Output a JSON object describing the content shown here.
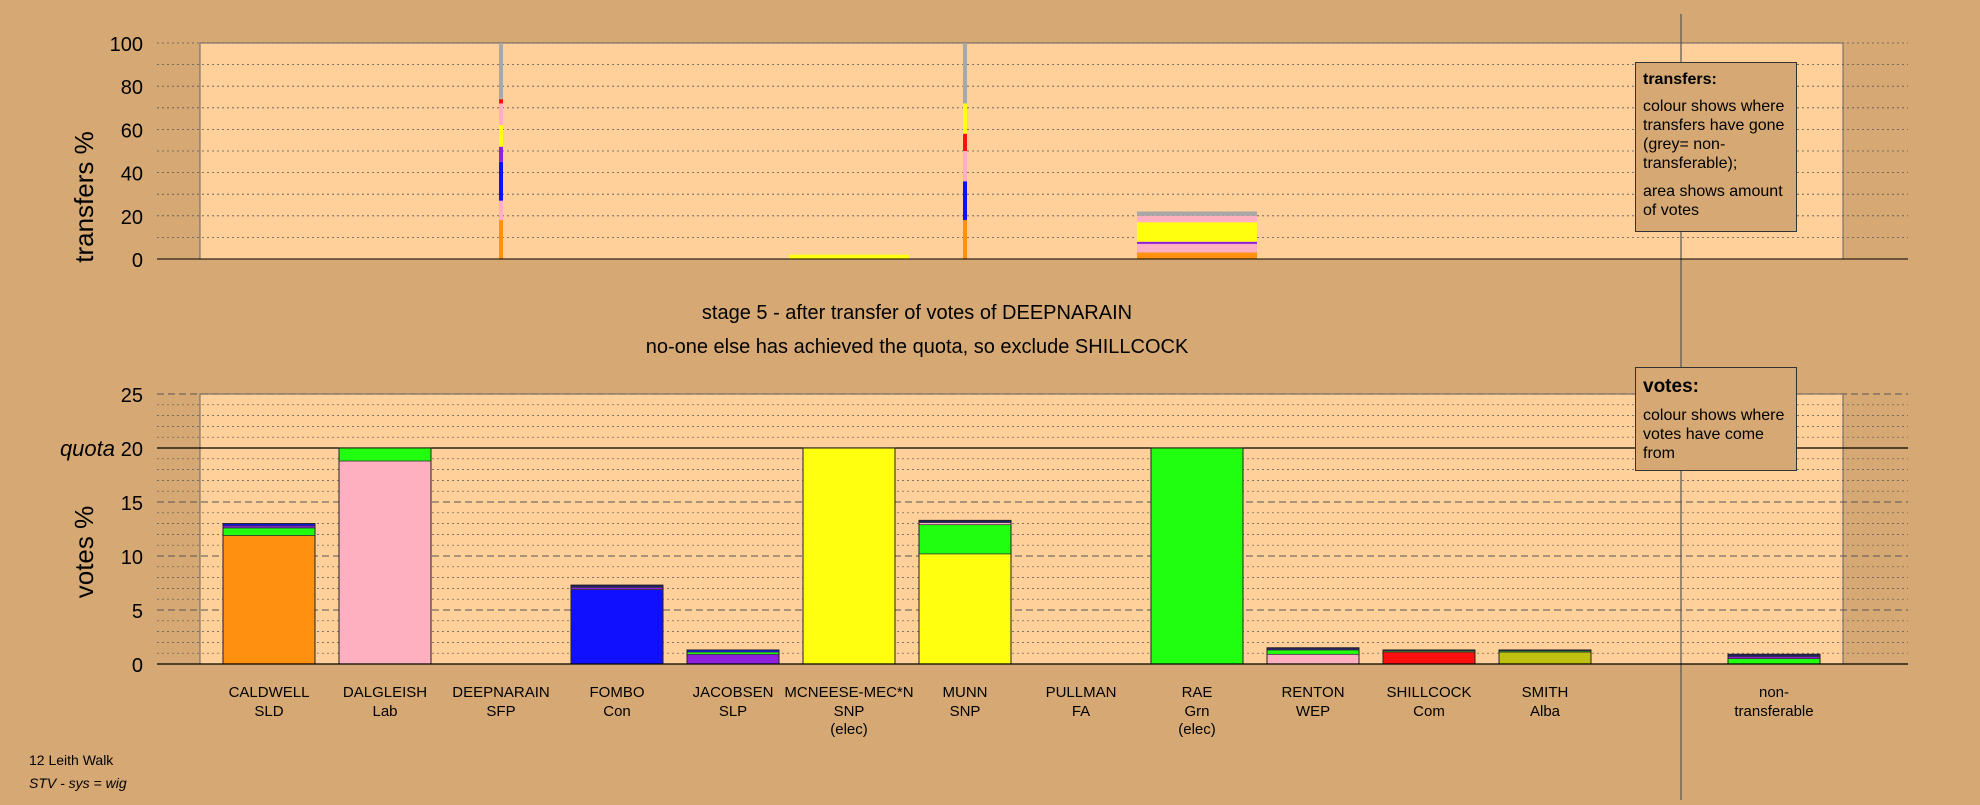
{
  "chart_data": [
    {
      "type": "bar",
      "name": "transfers",
      "ylabel": "transfers %",
      "ylim": [
        0,
        100
      ],
      "yticks": [
        0,
        20,
        40,
        60,
        80,
        100
      ],
      "grid": "dotted every 10",
      "thin_bars": [
        {
          "candidate": "DEEPNARAIN",
          "segments": [
            {
              "color": "#ff9010",
              "from": 0,
              "to": 18
            },
            {
              "color": "#ffb0c0",
              "from": 18,
              "to": 27
            },
            {
              "color": "#1010ff",
              "from": 27,
              "to": 45
            },
            {
              "color": "#9020e0",
              "from": 45,
              "to": 52
            },
            {
              "color": "#ffff10",
              "from": 52,
              "to": 62
            },
            {
              "color": "#ffb0c0",
              "from": 62,
              "to": 72
            },
            {
              "color": "#ff1010",
              "from": 72,
              "to": 74
            },
            {
              "color": "#a8a8a8",
              "from": 74,
              "to": 100
            }
          ]
        },
        {
          "candidate": "MUNN",
          "segments": [
            {
              "color": "#ff9010",
              "from": 0,
              "to": 18
            },
            {
              "color": "#1010ff",
              "from": 18,
              "to": 36
            },
            {
              "color": "#ffb0c0",
              "from": 36,
              "to": 50
            },
            {
              "color": "#ff1010",
              "from": 50,
              "to": 58
            },
            {
              "color": "#ffff10",
              "from": 58,
              "to": 72
            },
            {
              "color": "#a8a8a8",
              "from": 72,
              "to": 100
            }
          ]
        }
      ],
      "wide_bars": [
        {
          "candidate": "MCNEESE-MEC*N",
          "segments": [
            {
              "color": "#ffff10",
              "from": 0,
              "to": 2
            }
          ]
        },
        {
          "candidate": "RAE",
          "segments": [
            {
              "color": "#ff9010",
              "from": 0,
              "to": 3
            },
            {
              "color": "#ffb0c0",
              "from": 3,
              "to": 7
            },
            {
              "color": "#9020e0",
              "from": 7,
              "to": 8
            },
            {
              "color": "#ffff10",
              "from": 8,
              "to": 17
            },
            {
              "color": "#ffb0c0",
              "from": 17,
              "to": 20
            },
            {
              "color": "#a8a8a8",
              "from": 20,
              "to": 22
            }
          ]
        }
      ]
    },
    {
      "type": "bar",
      "name": "votes",
      "stacked": true,
      "ylabel": "votes %",
      "ylim": [
        0,
        25
      ],
      "yticks": [
        0,
        5,
        10,
        15,
        20,
        25
      ],
      "quota": 20,
      "quota_label": "quota",
      "grid": "dotted every 1, dashed every 5",
      "categories": [
        {
          "name": "CALDWELL",
          "party": "SLD",
          "note": ""
        },
        {
          "name": "DALGLEISH",
          "party": "Lab",
          "note": ""
        },
        {
          "name": "DEEPNARAIN",
          "party": "SFP",
          "note": ""
        },
        {
          "name": "FOMBO",
          "party": "Con",
          "note": ""
        },
        {
          "name": "JACOBSEN",
          "party": "SLP",
          "note": ""
        },
        {
          "name": "MCNEESE-MEC*N",
          "party": "SNP",
          "note": "(elec)"
        },
        {
          "name": "MUNN",
          "party": "SNP",
          "note": ""
        },
        {
          "name": "PULLMAN",
          "party": "FA",
          "note": ""
        },
        {
          "name": "RAE",
          "party": "Grn",
          "note": "(elec)"
        },
        {
          "name": "RENTON",
          "party": "WEP",
          "note": ""
        },
        {
          "name": "SHILLCOCK",
          "party": "Com",
          "note": ""
        },
        {
          "name": "SMITH",
          "party": "Alba",
          "note": ""
        }
      ],
      "stacks": [
        [
          {
            "color": "#ff9010",
            "value": 11.9
          },
          {
            "color": "#20ff10",
            "value": 0.7
          },
          {
            "color": "#9020e0",
            "value": 0.2
          },
          {
            "color": "#1010ff",
            "value": 0.2
          }
        ],
        [
          {
            "color": "#ffb0c0",
            "value": 18.8
          },
          {
            "color": "#20ff10",
            "value": 1.2
          }
        ],
        [],
        [
          {
            "color": "#1010ff",
            "value": 6.9
          },
          {
            "color": "#9020e0",
            "value": 0.2
          },
          {
            "color": "#202070",
            "value": 0.2
          }
        ],
        [
          {
            "color": "#9020e0",
            "value": 0.9
          },
          {
            "color": "#20ff10",
            "value": 0.2
          },
          {
            "color": "#1010ff",
            "value": 0.2
          }
        ],
        [
          {
            "color": "#ffff10",
            "value": 20.0
          }
        ],
        [
          {
            "color": "#ffff10",
            "value": 10.2
          },
          {
            "color": "#20ff10",
            "value": 2.7
          },
          {
            "color": "#ffb0c0",
            "value": 0.2
          },
          {
            "color": "#202070",
            "value": 0.2
          }
        ],
        [],
        [
          {
            "color": "#20ff10",
            "value": 20.0
          }
        ],
        [
          {
            "color": "#ffb0c0",
            "value": 0.9
          },
          {
            "color": "#20ff10",
            "value": 0.4
          },
          {
            "color": "#202070",
            "value": 0.2
          }
        ],
        [
          {
            "color": "#ff1010",
            "value": 1.1
          },
          {
            "color": "#20ff10",
            "value": 0.1
          },
          {
            "color": "#202070",
            "value": 0.1
          }
        ],
        [
          {
            "color": "#c0c010",
            "value": 1.1
          },
          {
            "color": "#20ff10",
            "value": 0.1
          },
          {
            "color": "#202070",
            "value": 0.1
          }
        ]
      ],
      "nontransferable": {
        "label": "non-\ntransferable",
        "stack": [
          {
            "color": "#20ff10",
            "value": 0.5
          },
          {
            "color": "#9020e0",
            "value": 0.2
          },
          {
            "color": "#202070",
            "value": 0.2
          }
        ]
      }
    }
  ],
  "stage_title": "stage 5 - after transfer of votes of DEEPNARAIN",
  "stage_subtitle": "no-one else has achieved the quota, so exclude SHILLCOCK",
  "legend_transfers": {
    "title": "transfers:",
    "line1": "colour shows where transfers have gone (grey= non-transferable);",
    "line2": "area shows amount of votes"
  },
  "legend_votes": {
    "title": "votes:",
    "line1": "colour shows where votes have come from"
  },
  "footer": {
    "ward": "12 Leith Walk",
    "system": "STV - sys = wig"
  }
}
